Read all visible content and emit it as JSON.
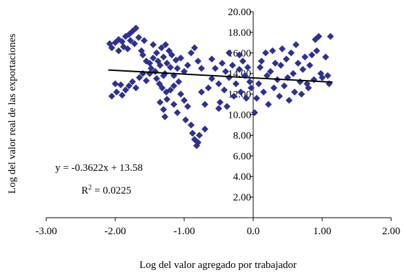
{
  "chart_data": {
    "type": "scatter",
    "x_label": "Log del valor agregado por trabajador",
    "y_label": "Log del valor real de las exportaciones",
    "equation": "y = -0.3622x + 13.58",
    "r2_symbol": "R",
    "r2_exponent": "2",
    "r2_value": " = 0.0225",
    "xlim": [
      -3,
      2
    ],
    "ylim": [
      0,
      20
    ],
    "xticks": [
      {
        "value": -3,
        "label": "-3.00"
      },
      {
        "value": -2,
        "label": "-2.00"
      },
      {
        "value": -1,
        "label": "-1.00"
      },
      {
        "value": 0,
        "label": "0.0"
      },
      {
        "value": 1,
        "label": "1.00"
      },
      {
        "value": 2,
        "label": "2.00"
      }
    ],
    "yticks": [
      {
        "value": 2,
        "label": "2.00"
      },
      {
        "value": 4,
        "label": "4.00"
      },
      {
        "value": 6,
        "label": "6.00"
      },
      {
        "value": 8,
        "label": "8.00"
      },
      {
        "value": 10,
        "label": "10.00"
      },
      {
        "value": 12,
        "label": "12.00"
      },
      {
        "value": 14,
        "label": "14.00"
      },
      {
        "value": 16,
        "label": "16.00"
      },
      {
        "value": 18,
        "label": "18.00"
      },
      {
        "value": 20,
        "label": "20.00"
      }
    ],
    "color": "#2e3192",
    "x": [
      -2.08,
      -2.05,
      -2.0,
      -1.95,
      -1.9,
      -1.85,
      -1.8,
      -1.75,
      -1.7,
      -1.78,
      -1.88,
      -1.95,
      -1.82,
      -1.72,
      -1.66,
      -1.62,
      -1.6,
      -1.58,
      -2.05,
      -1.98,
      -1.9,
      -1.85,
      -1.8,
      -1.75,
      -1.7,
      -1.65,
      -1.6,
      -1.55,
      -2.0,
      -1.92,
      -1.5,
      -1.48,
      -1.45,
      -1.42,
      -1.4,
      -1.38,
      -1.35,
      -1.33,
      -1.3,
      -1.28,
      -1.25,
      -1.22,
      -1.2,
      -1.18,
      -1.15,
      -1.12,
      -1.4,
      -1.36,
      -1.32,
      -1.3,
      -1.26,
      -1.5,
      -1.55,
      -1.45,
      -1.27,
      -1.1,
      -1.05,
      -1.0,
      -0.95,
      -0.9,
      -0.85,
      -0.8,
      -0.75,
      -1.35,
      -1.3,
      -1.28,
      -1.25,
      -1.2,
      -1.15,
      -1.1,
      -1.05,
      -1.0,
      -0.98,
      -0.95,
      -0.9,
      -0.88,
      -0.85,
      -0.82,
      -0.8,
      -0.78,
      -0.7,
      -0.75,
      -0.7,
      -0.65,
      -1.15,
      -1.08,
      -0.6,
      -0.55,
      -0.5,
      -0.48,
      -0.45,
      -0.42,
      -0.4,
      -0.38,
      -0.35,
      -0.3,
      -0.28,
      -0.25,
      -0.2,
      -0.18,
      -0.15,
      -0.12,
      -0.1,
      -0.08,
      -0.05,
      -0.03,
      -0.6,
      -0.35,
      -0.2,
      -0.5,
      0.02,
      0.05,
      0.08,
      0.1,
      0.12,
      0.15,
      0.18,
      0.2,
      0.22,
      0.25,
      0.28,
      0.3,
      0.32,
      0.35,
      0.38,
      0.4,
      0.42,
      0.45,
      0.48,
      0.5,
      0.52,
      0.55,
      0.58,
      0.6,
      0.62,
      0.65,
      0.68,
      0.7,
      0.72,
      0.75,
      0.78,
      0.8,
      0.82,
      0.85,
      0.88,
      0.9,
      0.92,
      0.95,
      0.98,
      1.0,
      1.05,
      1.08,
      1.12,
      1.1
    ],
    "values": [
      16.9,
      16.5,
      17.0,
      17.3,
      17.1,
      17.6,
      17.8,
      18.1,
      18.4,
      17.2,
      16.6,
      16.2,
      16.4,
      16.9,
      17.5,
      16.2,
      15.8,
      17.2,
      11.8,
      12.2,
      11.9,
      12.4,
      12.8,
      13.2,
      12.6,
      13.6,
      14.0,
      13.3,
      13.0,
      12.9,
      15.0,
      14.5,
      15.5,
      14.2,
      16.0,
      15.2,
      14.8,
      16.5,
      15.6,
      14.0,
      15.0,
      16.2,
      14.6,
      15.8,
      13.8,
      15.3,
      13.5,
      13.0,
      12.6,
      13.8,
      12.2,
      14.0,
      15.2,
      16.8,
      16.8,
      14.5,
      15.5,
      14.2,
      14.8,
      16.0,
      16.5,
      15.2,
      14.5,
      11.2,
      10.5,
      9.8,
      11.5,
      12.4,
      11.0,
      10.2,
      12.0,
      11.4,
      9.5,
      10.8,
      9.0,
      8.2,
      7.6,
      7.0,
      7.3,
      8.0,
      8.6,
      12.2,
      11.0,
      12.6,
      12.8,
      13.2,
      13.5,
      14.5,
      13.0,
      11.2,
      15.0,
      12.4,
      14.2,
      10.8,
      13.6,
      14.8,
      11.8,
      13.0,
      14.4,
      12.2,
      15.2,
      13.8,
      11.6,
      14.6,
      13.2,
      12.6,
      15.4,
      16.0,
      15.8,
      10.6,
      10.2,
      11.6,
      13.0,
      14.6,
      15.2,
      12.2,
      16.0,
      13.8,
      11.0,
      14.2,
      16.2,
      12.6,
      15.0,
      13.4,
      11.8,
      14.8,
      16.4,
      12.8,
      15.4,
      13.6,
      11.4,
      16.0,
      14.0,
      12.2,
      16.8,
      15.0,
      13.2,
      12.0,
      14.4,
      15.6,
      13.0,
      12.6,
      14.8,
      15.8,
      13.4,
      17.3,
      16.2,
      17.6,
      14.0,
      13.6,
      15.6,
      13.8,
      17.6,
      13.0
    ],
    "trendline": {
      "x": [
        -2.1,
        1.15
      ],
      "values": [
        14.34,
        13.16
      ],
      "color": "#000000"
    }
  }
}
